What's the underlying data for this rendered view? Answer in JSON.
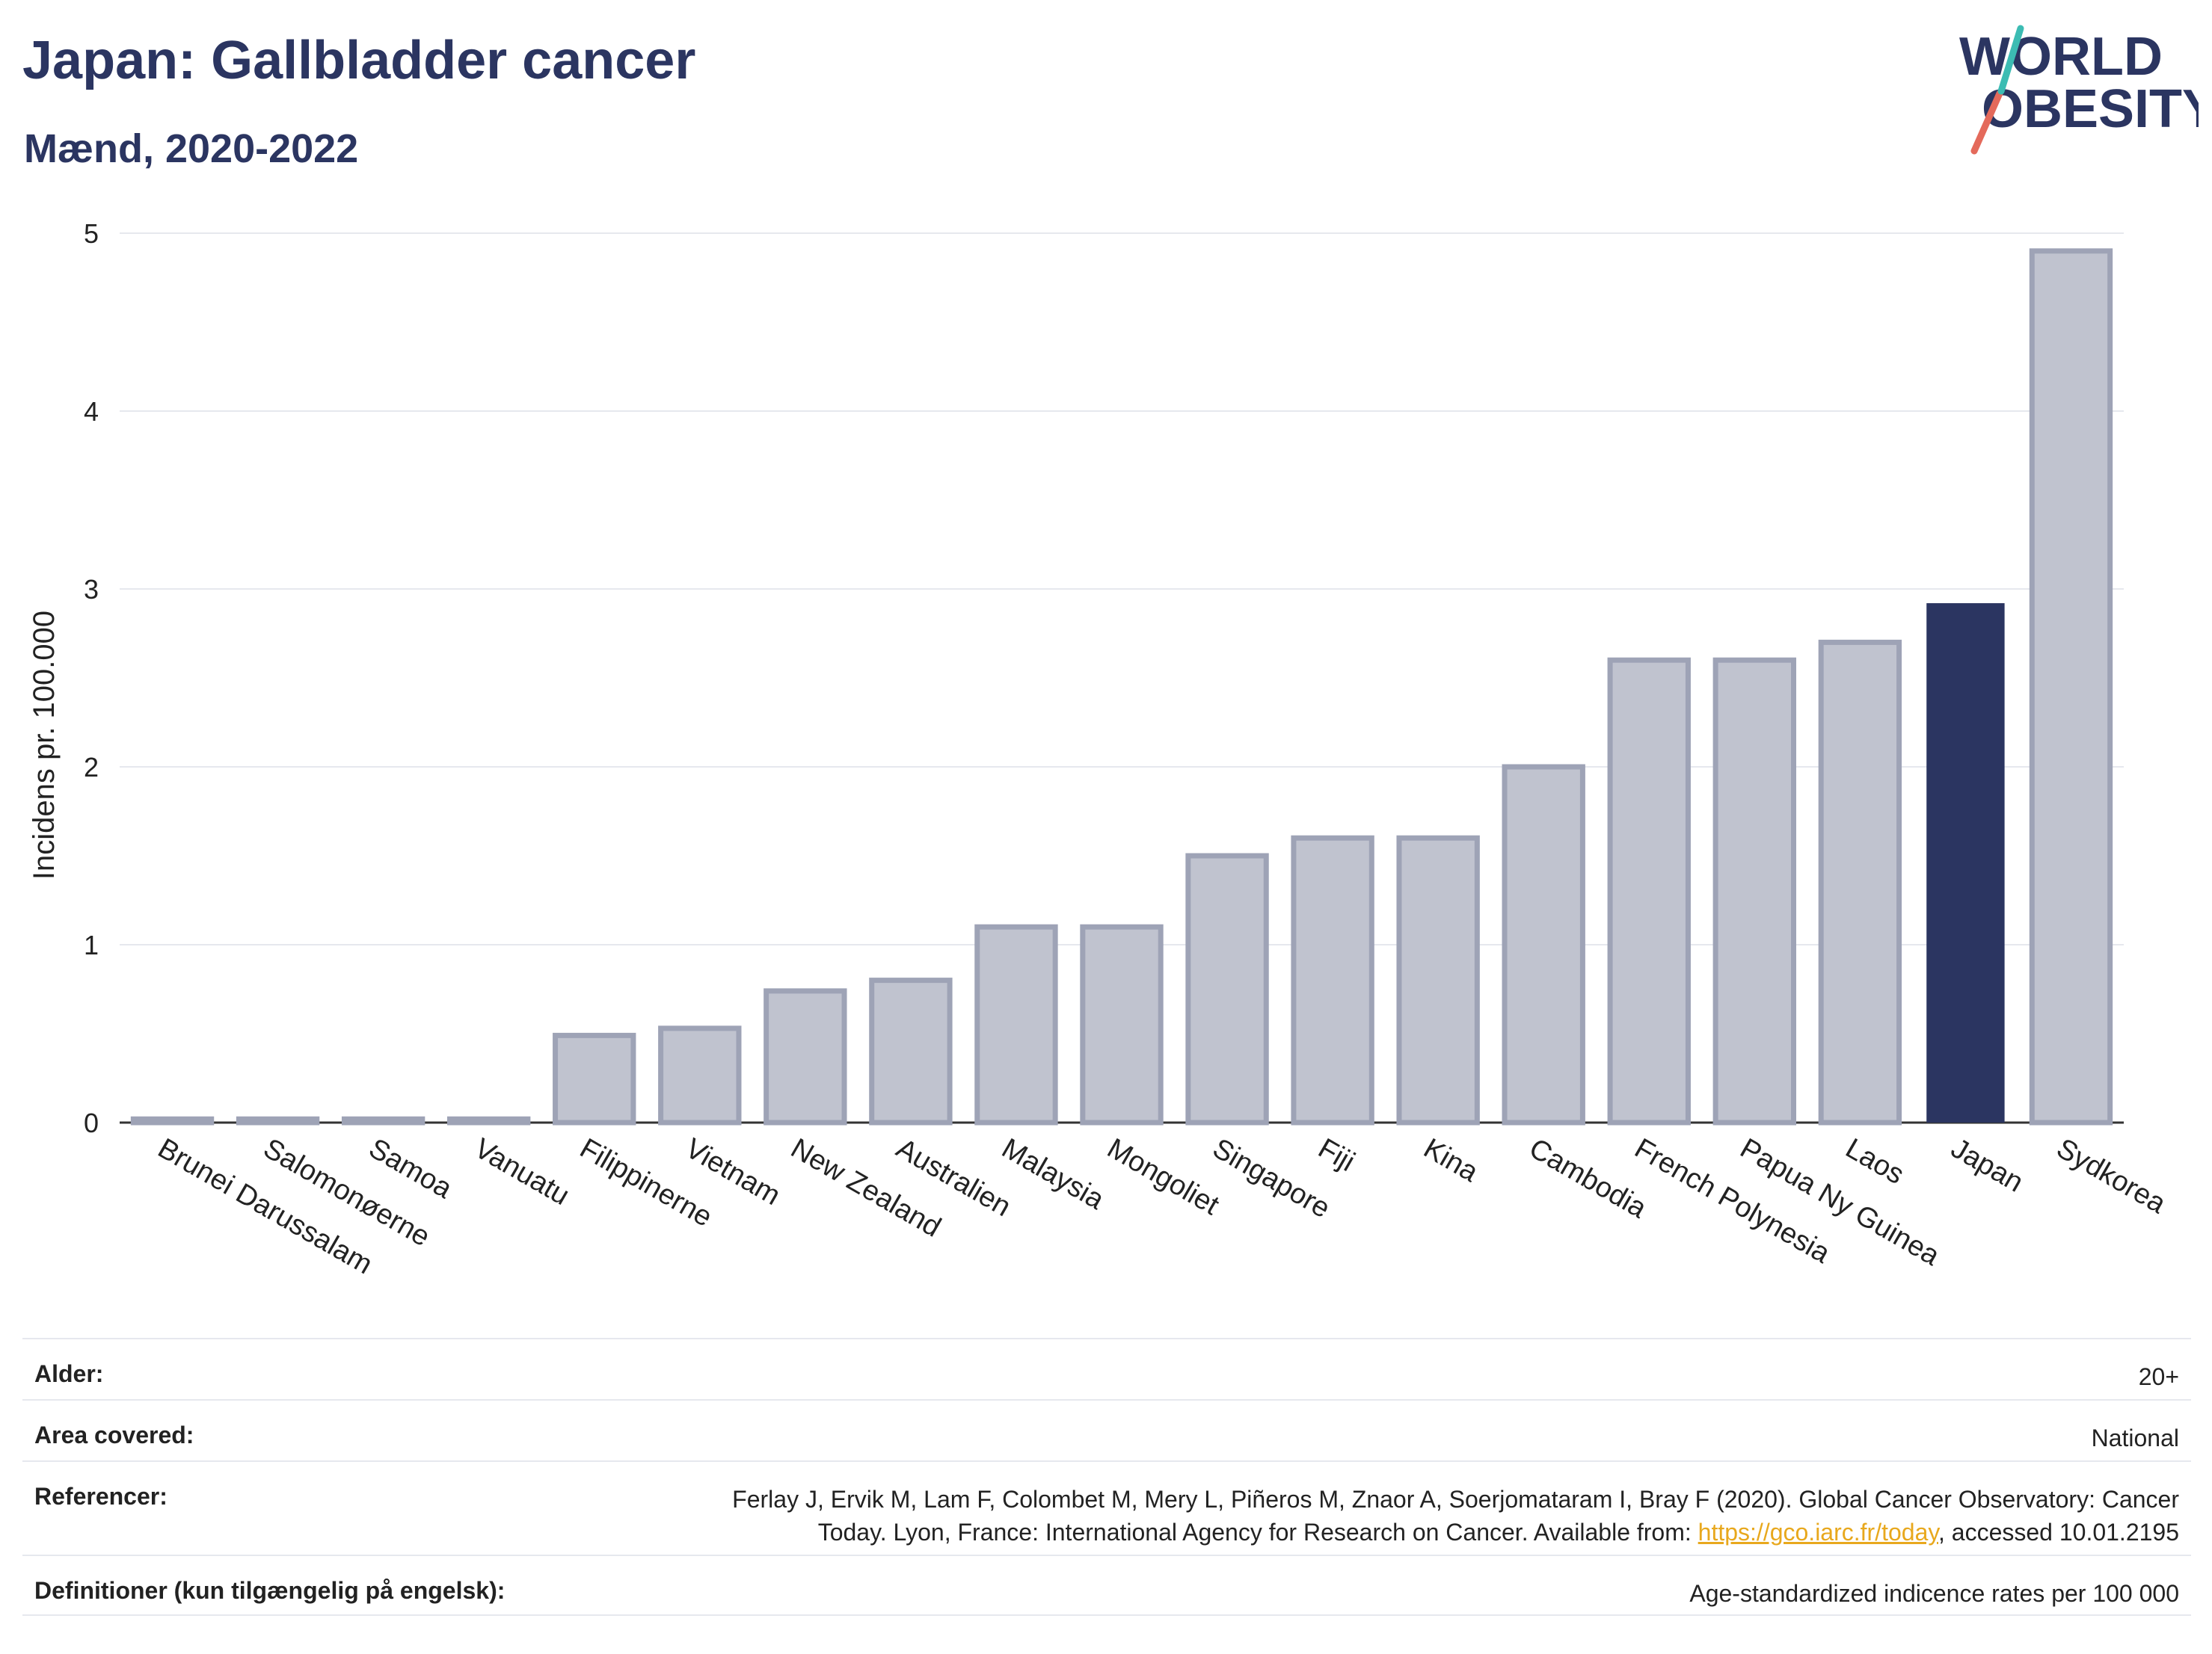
{
  "header": {
    "title": "Japan: Gallbladder cancer",
    "subtitle": "Mænd, 2020-2022"
  },
  "logo": {
    "line1": "WORLD",
    "line2": "OBESITY"
  },
  "colors": {
    "highlight": "#2b3561",
    "bar_fill": "#c0c3cf",
    "bar_stroke": "#9ea3b6",
    "grid": "#e6e8ee",
    "link": "#e8a81d"
  },
  "chart_data": {
    "type": "bar",
    "title": "Japan: Gallbladder cancer",
    "subtitle": "Mænd, 2020-2022",
    "xlabel": "",
    "ylabel": "Incidens pr. 100.000",
    "ylim": [
      0,
      5
    ],
    "yticks": [
      0,
      1,
      2,
      3,
      4,
      5
    ],
    "grid": true,
    "highlight_category": "Japan",
    "categories": [
      "Brunei Darussalam",
      "Salomonøerne",
      "Samoa",
      "Vanuatu",
      "Filippinerne",
      "Vietnam",
      "New Zealand",
      "Australien",
      "Malaysia",
      "Mongoliet",
      "Singapore",
      "Fiji",
      "Kina",
      "Cambodia",
      "French Polynesia",
      "Papua Ny Guinea",
      "Laos",
      "Japan",
      "Sydkorea"
    ],
    "values": [
      0.02,
      0.02,
      0.02,
      0.02,
      0.49,
      0.53,
      0.74,
      0.8,
      1.1,
      1.1,
      1.5,
      1.6,
      1.6,
      2.0,
      2.6,
      2.6,
      2.7,
      2.92,
      4.9
    ]
  },
  "meta": {
    "rows": [
      {
        "label": "Alder:",
        "value": "20+"
      },
      {
        "label": "Area covered:",
        "value": "National"
      },
      {
        "label": "Referencer:",
        "value_line1": "Ferlay J, Ervik M, Lam F, Colombet M, Mery L, Piñeros M, Znaor A, Soerjomataram I, Bray F (2020). Global Cancer Observatory: Cancer",
        "value_line2_pre": "Today. Lyon, France: International Agency for Research on Cancer. Available from: ",
        "link_text": "https://gco.iarc.fr/today",
        "value_line2_post": ", accessed 10.01.2195"
      },
      {
        "label": "Definitioner (kun tilgængelig på engelsk):",
        "value": "Age-standardized indicence rates per 100 000"
      }
    ]
  }
}
